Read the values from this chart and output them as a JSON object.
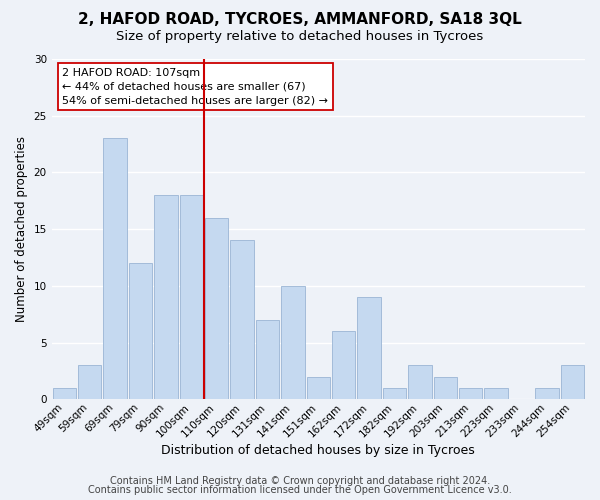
{
  "title1": "2, HAFOD ROAD, TYCROES, AMMANFORD, SA18 3QL",
  "title2": "Size of property relative to detached houses in Tycroes",
  "xlabel": "Distribution of detached houses by size in Tycroes",
  "ylabel": "Number of detached properties",
  "bar_labels": [
    "49sqm",
    "59sqm",
    "69sqm",
    "79sqm",
    "90sqm",
    "100sqm",
    "110sqm",
    "120sqm",
    "131sqm",
    "141sqm",
    "151sqm",
    "162sqm",
    "172sqm",
    "182sqm",
    "192sqm",
    "203sqm",
    "213sqm",
    "223sqm",
    "233sqm",
    "244sqm",
    "254sqm"
  ],
  "bar_values": [
    1,
    3,
    23,
    12,
    18,
    18,
    16,
    14,
    7,
    10,
    2,
    6,
    9,
    1,
    3,
    2,
    1,
    1,
    0,
    1,
    3
  ],
  "bar_color": "#c5d9f0",
  "bar_edge_color": "#9ab5d4",
  "vline_color": "#cc0000",
  "vline_x_index": 5.5,
  "annotation_title": "2 HAFOD ROAD: 107sqm",
  "annotation_line1": "← 44% of detached houses are smaller (67)",
  "annotation_line2": "54% of semi-detached houses are larger (82) →",
  "annotation_box_color": "#ffffff",
  "annotation_box_edge": "#cc0000",
  "ylim": [
    0,
    30
  ],
  "yticks": [
    0,
    5,
    10,
    15,
    20,
    25,
    30
  ],
  "footer1": "Contains HM Land Registry data © Crown copyright and database right 2024.",
  "footer2": "Contains public sector information licensed under the Open Government Licence v3.0.",
  "bg_color": "#eef2f8",
  "plot_bg_color": "#eef2f8",
  "grid_color": "#ffffff",
  "title1_fontsize": 11,
  "title2_fontsize": 9.5,
  "xlabel_fontsize": 9,
  "ylabel_fontsize": 8.5,
  "tick_fontsize": 7.5,
  "footer_fontsize": 7
}
